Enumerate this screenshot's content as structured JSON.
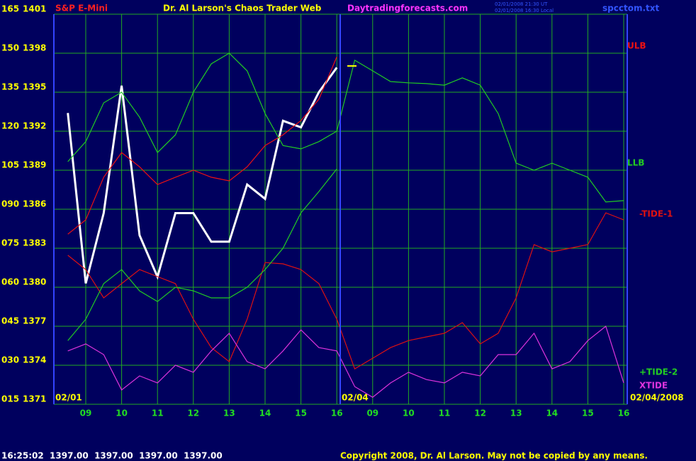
{
  "chart_data": {
    "type": "line",
    "title": "Dr. Al Larson's Chaos Trader Web",
    "annotations": {
      "symbol": "S&P E-Mini",
      "site": "Daytradingforecasts.com",
      "timestamp_ut": "02/01/2008 21:30 UT",
      "timestamp_local": "02/01/2008 16:30 Local",
      "file": "spcctom.txt",
      "date_start": "02/01",
      "date_day2": "02/04",
      "date_end": "02/04/2008",
      "quote": "16:25:02  1397.00  1397.00  1397.00  1397.00",
      "copyright": "Copyright 2008, Dr. Al Larson. May not be copied by any means."
    },
    "categories": [
      null,
      "09",
      null,
      "10",
      null,
      "11",
      null,
      "12",
      null,
      "13",
      null,
      "14",
      null,
      "15",
      null,
      "16",
      null,
      "09",
      null,
      "10",
      null,
      "11",
      null,
      "12",
      null,
      "13",
      null,
      "14",
      null,
      "15",
      null,
      "16"
    ],
    "ylim": [
      1371,
      1401
    ],
    "yticks": [
      1371,
      1374,
      1377,
      1380,
      1383,
      1386,
      1389,
      1392,
      1395,
      1398,
      1401
    ],
    "y2lim": [
      15,
      165
    ],
    "y2ticks": [
      {
        "value": 15,
        "label": "015"
      },
      {
        "value": 30,
        "label": "030"
      },
      {
        "value": 45,
        "label": "045"
      },
      {
        "value": 60,
        "label": "060"
      },
      {
        "value": 75,
        "label": "075"
      },
      {
        "value": 90,
        "label": "090"
      },
      105,
      120,
      135,
      150,
      165
    ],
    "grid": true,
    "series": [
      {
        "color": "#ffffff",
        "values": [
          1393.4,
          1380.3,
          1385.7,
          1395.5,
          1384,
          1380.8,
          1385.7,
          1385.7,
          1383.5,
          1383.5,
          1387.9,
          1386.8,
          1392.8,
          1392.3,
          1395,
          1396.9,
          null,
          null,
          null,
          null,
          null,
          null,
          null,
          null,
          null,
          null,
          null,
          null,
          null,
          null,
          null,
          null
        ]
      },
      {
        "name": "ULB",
        "color": "#ee1111",
        "axis": "y2",
        "values": [
          80.4,
          85.9,
          102.3,
          111.8,
          106.3,
          99.5,
          102.3,
          105,
          102.3,
          100.9,
          106.3,
          114.5,
          118.6,
          124.1,
          132.3,
          148.6,
          null,
          null,
          null,
          null,
          null,
          null,
          null,
          null,
          null,
          null,
          null,
          null,
          null,
          null,
          null,
          null
        ]
      },
      {
        "name": "LLB",
        "color": "#22cc22",
        "axis": "y2",
        "values": [
          108.3,
          116,
          130.9,
          135,
          125.4,
          111.8,
          118.6,
          135,
          145.9,
          150,
          143.2,
          126.8,
          114.5,
          113.2,
          116,
          120,
          147.3,
          143.2,
          139.1,
          138.6,
          138.3,
          137.7,
          140.5,
          137.7,
          126.8,
          107.7,
          105,
          107.7,
          105,
          102.3,
          92.8,
          93.3
        ]
      },
      {
        "name": "-TIDE-1",
        "color": "#dd1111",
        "axis": "y2",
        "values": [
          72.3,
          66.8,
          55.9,
          61.4,
          66.8,
          64.1,
          61.4,
          47.7,
          36.8,
          31.4,
          47.7,
          69.5,
          69,
          66.8,
          61.4,
          47.7,
          28.6,
          32.7,
          36.8,
          39.5,
          40.9,
          42.3,
          46.4,
          38.2,
          42.3,
          55.9,
          76.4,
          73.6,
          75,
          76.4,
          88.6,
          85.9
        ]
      },
      {
        "name": "+TIDE-2",
        "color": "#22cc22",
        "axis": "y2",
        "values": [
          39.5,
          47.7,
          61.4,
          66.8,
          58.6,
          54.5,
          60,
          58.6,
          55.9,
          55.9,
          60,
          66.8,
          75,
          88.6,
          96.8,
          105.5,
          null,
          null,
          null,
          null,
          null,
          null,
          null,
          null,
          null,
          null,
          null,
          null,
          null,
          null,
          null,
          null
        ]
      },
      {
        "name": "XTIDE",
        "color": "#dd33dd",
        "axis": "y2",
        "values": [
          35.5,
          38.2,
          34.1,
          20.5,
          25.9,
          23.2,
          30,
          27.3,
          35.5,
          42.3,
          31.4,
          28.6,
          35.5,
          43.6,
          36.8,
          35.5,
          21.8,
          17.7,
          23.2,
          27.3,
          24.5,
          23.2,
          27.3,
          25.9,
          34.1,
          34.1,
          42.3,
          28.6,
          31.4,
          39.5,
          45,
          23.2
        ]
      }
    ]
  }
}
